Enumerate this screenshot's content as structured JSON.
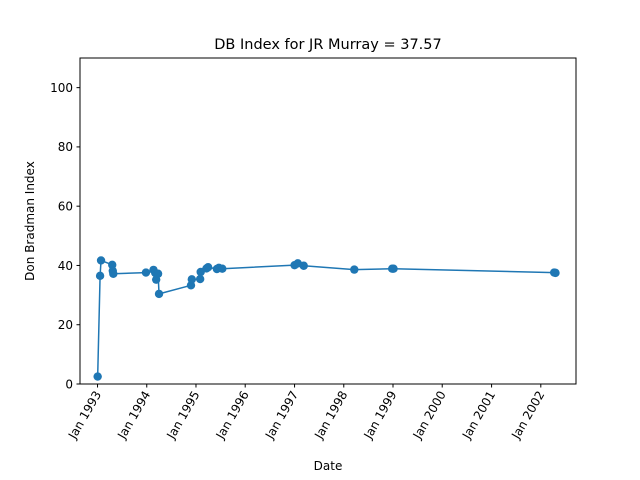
{
  "chart_data": {
    "type": "line",
    "title": "DB Index for JR Murray = 37.57",
    "xlabel": "Date",
    "ylabel": "Don Bradman Index",
    "ylim": [
      0,
      110
    ],
    "xlim": [
      "1992-08-24",
      "2002-09-19"
    ],
    "x_ticks": [
      {
        "date": "1993-01-01",
        "label": "Jan 1993"
      },
      {
        "date": "1994-01-01",
        "label": "Jan 1994"
      },
      {
        "date": "1995-01-01",
        "label": "Jan 1995"
      },
      {
        "date": "1996-01-01",
        "label": "Jan 1996"
      },
      {
        "date": "1997-01-01",
        "label": "Jan 1997"
      },
      {
        "date": "1998-01-01",
        "label": "Jan 1998"
      },
      {
        "date": "1999-01-01",
        "label": "Jan 1999"
      },
      {
        "date": "2000-01-01",
        "label": "Jan 2000"
      },
      {
        "date": "2001-01-01",
        "label": "Jan 2001"
      },
      {
        "date": "2002-01-01",
        "label": "Jan 2002"
      }
    ],
    "y_ticks": [
      0,
      20,
      40,
      60,
      80,
      100
    ],
    "grid": false,
    "marker": "circle",
    "series": [
      {
        "color": "#1f77b4",
        "points": [
          {
            "x": "1993-01-02",
            "y": 2.5
          },
          {
            "x": "1993-01-20",
            "y": 36.5
          },
          {
            "x": "1993-01-27",
            "y": 41.7
          },
          {
            "x": "1993-04-20",
            "y": 40.2
          },
          {
            "x": "1993-04-24",
            "y": 38.2
          },
          {
            "x": "1993-04-28",
            "y": 37.2
          },
          {
            "x": "1993-12-26",
            "y": 37.6
          },
          {
            "x": "1994-02-20",
            "y": 38.5
          },
          {
            "x": "1994-03-05",
            "y": 37.5
          },
          {
            "x": "1994-03-12",
            "y": 35.2
          },
          {
            "x": "1994-03-26",
            "y": 37.2
          },
          {
            "x": "1994-04-02",
            "y": 30.4
          },
          {
            "x": "1994-11-25",
            "y": 33.3
          },
          {
            "x": "1994-12-01",
            "y": 35.3
          },
          {
            "x": "1995-02-01",
            "y": 35.4
          },
          {
            "x": "1995-02-05",
            "y": 37.8
          },
          {
            "x": "1995-03-20",
            "y": 39.0
          },
          {
            "x": "1995-04-01",
            "y": 39.4
          },
          {
            "x": "1995-06-05",
            "y": 38.8
          },
          {
            "x": "1995-06-20",
            "y": 39.2
          },
          {
            "x": "1995-07-15",
            "y": 38.9
          },
          {
            "x": "1997-01-01",
            "y": 40.1
          },
          {
            "x": "1997-01-25",
            "y": 40.7
          },
          {
            "x": "1997-03-10",
            "y": 39.9
          },
          {
            "x": "1998-03-20",
            "y": 38.6
          },
          {
            "x": "1998-12-26",
            "y": 38.9
          },
          {
            "x": "1999-01-05",
            "y": 38.9
          },
          {
            "x": "2002-04-10",
            "y": 37.6
          },
          {
            "x": "2002-04-20",
            "y": 37.5
          }
        ]
      }
    ]
  }
}
